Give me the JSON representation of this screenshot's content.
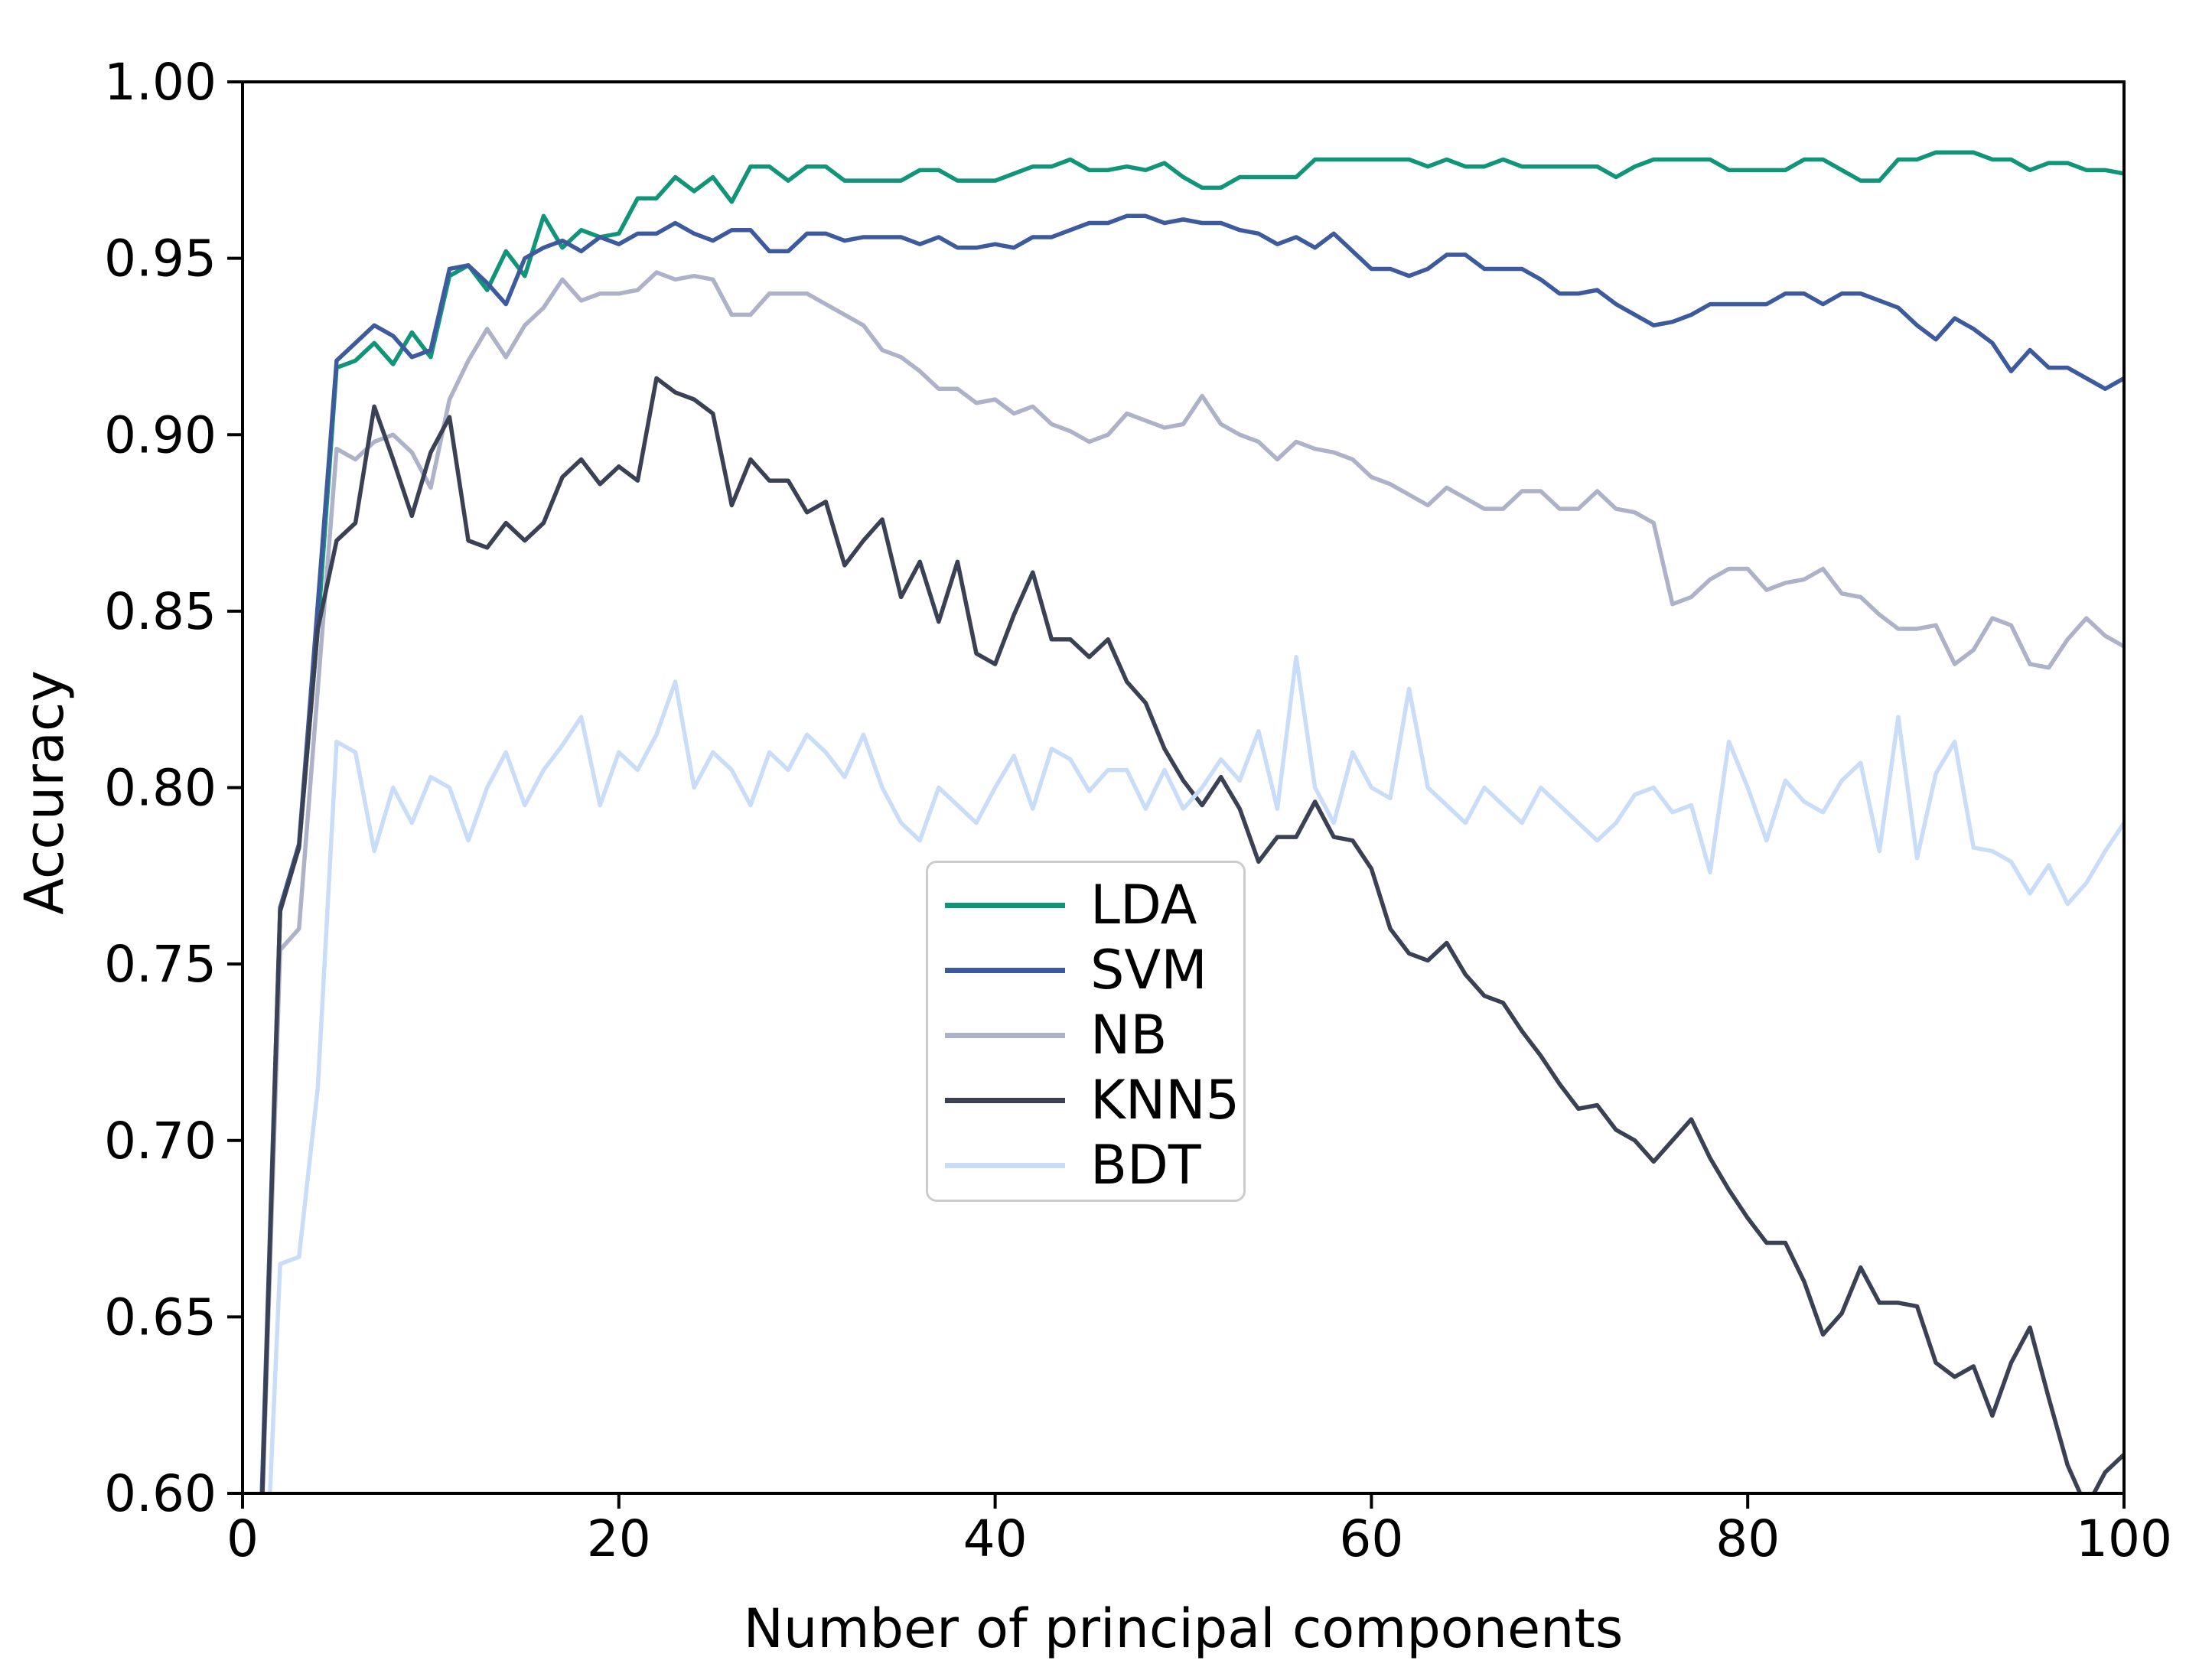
{
  "chart_data": {
    "type": "line",
    "title": "",
    "xlabel": "Number of principal components",
    "ylabel": "Accuracy",
    "xlim": [
      0,
      100
    ],
    "ylim": [
      0.6,
      1.0
    ],
    "grid": false,
    "legend_position": "center",
    "axis_color": "#000000",
    "xtick_values": [
      0,
      20,
      40,
      60,
      80,
      100
    ],
    "xtick_labels": [
      "0",
      "20",
      "40",
      "60",
      "80",
      "100"
    ],
    "ytick_values": [
      1.0,
      0.95,
      0.9,
      0.85,
      0.8,
      0.75,
      0.7,
      0.65,
      0.6
    ],
    "ytick_labels": [
      "1.00",
      "0.95",
      "0.90",
      "0.85",
      "0.80",
      "0.75",
      "0.70",
      "0.65",
      "0.60"
    ],
    "x": [
      1,
      2,
      3,
      4,
      5,
      6,
      7,
      8,
      9,
      10,
      11,
      12,
      13,
      14,
      15,
      16,
      17,
      18,
      19,
      20,
      21,
      22,
      23,
      24,
      25,
      26,
      27,
      28,
      29,
      30,
      31,
      32,
      33,
      34,
      35,
      36,
      37,
      38,
      39,
      40,
      41,
      42,
      43,
      44,
      45,
      46,
      47,
      48,
      49,
      50,
      51,
      52,
      53,
      54,
      55,
      56,
      57,
      58,
      59,
      60,
      61,
      62,
      63,
      64,
      65,
      66,
      67,
      68,
      69,
      70,
      71,
      72,
      73,
      74,
      75,
      76,
      77,
      78,
      79,
      80,
      81,
      82,
      83,
      84,
      85,
      86,
      87,
      88,
      89,
      90,
      91,
      92,
      93,
      94,
      95,
      96,
      97,
      98,
      99,
      100
    ],
    "series": [
      {
        "label": "LDA",
        "color": "#109579",
        "values": [
          0.592,
          0.766,
          0.783,
          0.845,
          0.919,
          0.921,
          0.926,
          0.92,
          0.929,
          0.922,
          0.945,
          0.948,
          0.941,
          0.952,
          0.945,
          0.962,
          0.953,
          0.958,
          0.956,
          0.957,
          0.967,
          0.967,
          0.973,
          0.969,
          0.973,
          0.966,
          0.976,
          0.976,
          0.972,
          0.976,
          0.976,
          0.972,
          0.972,
          0.972,
          0.972,
          0.975,
          0.975,
          0.972,
          0.972,
          0.972,
          0.974,
          0.976,
          0.976,
          0.978,
          0.975,
          0.975,
          0.976,
          0.975,
          0.977,
          0.973,
          0.97,
          0.97,
          0.973,
          0.973,
          0.973,
          0.973,
          0.978,
          0.978,
          0.978,
          0.978,
          0.978,
          0.978,
          0.976,
          0.978,
          0.976,
          0.976,
          0.978,
          0.976,
          0.976,
          0.976,
          0.976,
          0.976,
          0.973,
          0.976,
          0.978,
          0.978,
          0.978,
          0.978,
          0.975,
          0.975,
          0.975,
          0.975,
          0.978,
          0.978,
          0.975,
          0.972,
          0.972,
          0.978,
          0.978,
          0.98,
          0.98,
          0.98,
          0.978,
          0.978,
          0.975,
          0.977,
          0.977,
          0.975,
          0.975,
          0.974
        ]
      },
      {
        "label": "SVM",
        "color": "#3d5a9f",
        "values": [
          0.596,
          0.766,
          0.784,
          0.852,
          0.921,
          0.926,
          0.931,
          0.928,
          0.922,
          0.924,
          0.947,
          0.948,
          0.943,
          0.937,
          0.95,
          0.953,
          0.955,
          0.952,
          0.956,
          0.954,
          0.957,
          0.957,
          0.96,
          0.957,
          0.955,
          0.958,
          0.958,
          0.952,
          0.952,
          0.957,
          0.957,
          0.955,
          0.956,
          0.956,
          0.956,
          0.954,
          0.956,
          0.953,
          0.953,
          0.954,
          0.953,
          0.956,
          0.956,
          0.958,
          0.96,
          0.96,
          0.962,
          0.962,
          0.96,
          0.961,
          0.96,
          0.96,
          0.958,
          0.957,
          0.954,
          0.956,
          0.953,
          0.957,
          0.952,
          0.947,
          0.947,
          0.945,
          0.947,
          0.951,
          0.951,
          0.947,
          0.947,
          0.947,
          0.944,
          0.94,
          0.94,
          0.941,
          0.937,
          0.934,
          0.931,
          0.932,
          0.934,
          0.937,
          0.937,
          0.937,
          0.937,
          0.94,
          0.94,
          0.937,
          0.94,
          0.94,
          0.938,
          0.936,
          0.931,
          0.927,
          0.933,
          0.93,
          0.926,
          0.918,
          0.924,
          0.919,
          0.919,
          0.916,
          0.913,
          0.916
        ]
      },
      {
        "label": "NB",
        "color": "#adb2c9",
        "values": [
          0.588,
          0.754,
          0.76,
          0.828,
          0.896,
          0.893,
          0.898,
          0.9,
          0.895,
          0.885,
          0.91,
          0.921,
          0.93,
          0.922,
          0.931,
          0.936,
          0.944,
          0.938,
          0.94,
          0.94,
          0.941,
          0.946,
          0.944,
          0.945,
          0.944,
          0.934,
          0.934,
          0.94,
          0.94,
          0.94,
          0.937,
          0.934,
          0.931,
          0.924,
          0.922,
          0.918,
          0.913,
          0.913,
          0.909,
          0.91,
          0.906,
          0.908,
          0.903,
          0.901,
          0.898,
          0.9,
          0.906,
          0.904,
          0.902,
          0.903,
          0.911,
          0.903,
          0.9,
          0.898,
          0.893,
          0.898,
          0.896,
          0.895,
          0.893,
          0.888,
          0.886,
          0.883,
          0.88,
          0.885,
          0.882,
          0.879,
          0.879,
          0.884,
          0.884,
          0.879,
          0.879,
          0.884,
          0.879,
          0.878,
          0.875,
          0.852,
          0.854,
          0.859,
          0.862,
          0.862,
          0.856,
          0.858,
          0.859,
          0.862,
          0.855,
          0.854,
          0.849,
          0.845,
          0.845,
          0.846,
          0.835,
          0.839,
          0.848,
          0.846,
          0.835,
          0.834,
          0.842,
          0.848,
          0.843,
          0.84
        ]
      },
      {
        "label": "KNN5",
        "color": "#3b4155",
        "values": [
          0.59,
          0.765,
          0.783,
          0.845,
          0.87,
          0.875,
          0.908,
          0.893,
          0.877,
          0.895,
          0.905,
          0.87,
          0.868,
          0.875,
          0.87,
          0.875,
          0.888,
          0.893,
          0.886,
          0.891,
          0.887,
          0.916,
          0.912,
          0.91,
          0.906,
          0.88,
          0.893,
          0.887,
          0.887,
          0.878,
          0.881,
          0.863,
          0.87,
          0.876,
          0.854,
          0.864,
          0.847,
          0.864,
          0.838,
          0.835,
          0.849,
          0.861,
          0.842,
          0.842,
          0.837,
          0.842,
          0.83,
          0.824,
          0.811,
          0.802,
          0.795,
          0.803,
          0.794,
          0.779,
          0.786,
          0.786,
          0.796,
          0.786,
          0.785,
          0.777,
          0.76,
          0.753,
          0.751,
          0.756,
          0.747,
          0.741,
          0.739,
          0.731,
          0.724,
          0.716,
          0.709,
          0.71,
          0.703,
          0.7,
          0.694,
          0.7,
          0.706,
          0.695,
          0.686,
          0.678,
          0.671,
          0.671,
          0.66,
          0.645,
          0.651,
          0.664,
          0.654,
          0.654,
          0.653,
          0.637,
          0.633,
          0.636,
          0.622,
          0.637,
          0.647,
          0.627,
          0.608,
          0.596,
          0.606,
          0.611
        ]
      },
      {
        "label": "BDT",
        "color": "#c9ddf8",
        "values": [
          0.545,
          0.665,
          0.667,
          0.715,
          0.813,
          0.81,
          0.782,
          0.8,
          0.79,
          0.803,
          0.8,
          0.785,
          0.8,
          0.81,
          0.795,
          0.805,
          0.812,
          0.82,
          0.795,
          0.81,
          0.805,
          0.815,
          0.83,
          0.8,
          0.81,
          0.805,
          0.795,
          0.81,
          0.805,
          0.815,
          0.81,
          0.803,
          0.815,
          0.8,
          0.79,
          0.785,
          0.8,
          0.795,
          0.79,
          0.8,
          0.809,
          0.794,
          0.811,
          0.808,
          0.799,
          0.805,
          0.805,
          0.794,
          0.805,
          0.794,
          0.8,
          0.808,
          0.802,
          0.816,
          0.794,
          0.837,
          0.8,
          0.79,
          0.81,
          0.8,
          0.797,
          0.828,
          0.8,
          0.795,
          0.79,
          0.8,
          0.795,
          0.79,
          0.8,
          0.795,
          0.79,
          0.785,
          0.79,
          0.798,
          0.8,
          0.793,
          0.795,
          0.776,
          0.813,
          0.8,
          0.785,
          0.802,
          0.796,
          0.793,
          0.802,
          0.807,
          0.782,
          0.82,
          0.78,
          0.804,
          0.813,
          0.783,
          0.782,
          0.779,
          0.77,
          0.778,
          0.767,
          0.773,
          0.782,
          0.79
        ]
      }
    ]
  }
}
